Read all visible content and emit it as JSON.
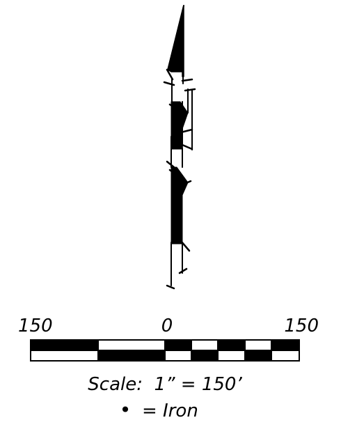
{
  "scale_bar": {
    "left_label": "150",
    "center_label": "0",
    "right_label": "150",
    "caption": "Scale:  1” = 150’"
  },
  "legend": {
    "symbol": "•",
    "text": "= Iron"
  },
  "colors": {
    "ink": "#000000",
    "paper": "#ffffff"
  }
}
